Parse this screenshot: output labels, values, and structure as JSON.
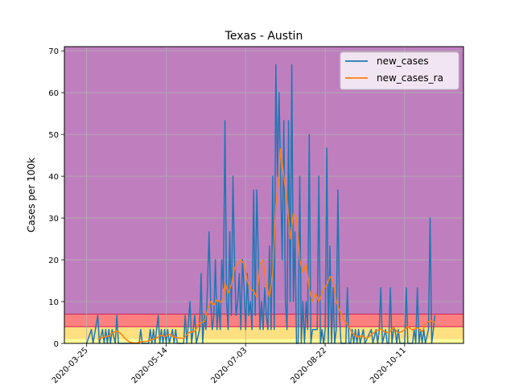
{
  "chart_data": {
    "type": "line",
    "title": "Texas - Austin",
    "ylabel": "Cases per 100k",
    "xlabel": "",
    "x_range": [
      "2020-03-11",
      "2020-11-17"
    ],
    "ylim": [
      0,
      71
    ],
    "y_ticks": [
      0,
      10,
      20,
      30,
      40,
      50,
      60,
      70
    ],
    "x_ticks": [
      "2020-03-25",
      "2020-05-14",
      "2020-07-03",
      "2020-08-22",
      "2020-10-11"
    ],
    "grid": true,
    "legend_position": "top-right",
    "background_bands": [
      {
        "from": 7,
        "to": 71,
        "color": "#bf7fbf"
      },
      {
        "from": 4,
        "to": 7,
        "color": "#ff8080"
      },
      {
        "from": 1,
        "to": 4,
        "color": "#ffe080"
      },
      {
        "from": 0,
        "to": 1,
        "color": "#ffff99"
      }
    ],
    "band_edge_color": "#cc2255",
    "series": [
      {
        "name": "new_cases",
        "color": "#1f77b4",
        "points": [
          [
            "2020-03-25",
            0
          ],
          [
            "2020-03-28",
            3.3
          ],
          [
            "2020-03-29",
            0
          ],
          [
            "2020-04-01",
            6.7
          ],
          [
            "2020-04-02",
            0
          ],
          [
            "2020-04-04",
            3.3
          ],
          [
            "2020-04-05",
            0
          ],
          [
            "2020-04-06",
            3.3
          ],
          [
            "2020-04-07",
            0
          ],
          [
            "2020-04-08",
            3.3
          ],
          [
            "2020-04-09",
            0
          ],
          [
            "2020-04-10",
            3.3
          ],
          [
            "2020-04-12",
            0
          ],
          [
            "2020-04-13",
            6.7
          ],
          [
            "2020-04-14",
            0
          ],
          [
            "2020-04-27",
            0
          ],
          [
            "2020-04-28",
            3.3
          ],
          [
            "2020-04-29",
            0
          ],
          [
            "2020-05-03",
            0
          ],
          [
            "2020-05-04",
            3.3
          ],
          [
            "2020-05-05",
            0
          ],
          [
            "2020-05-06",
            3.3
          ],
          [
            "2020-05-07",
            0
          ],
          [
            "2020-05-08",
            3.3
          ],
          [
            "2020-05-09",
            6.7
          ],
          [
            "2020-05-10",
            0
          ],
          [
            "2020-05-11",
            3.3
          ],
          [
            "2020-05-12",
            0
          ],
          [
            "2020-05-13",
            3.3
          ],
          [
            "2020-05-14",
            0
          ],
          [
            "2020-05-15",
            3.3
          ],
          [
            "2020-05-16",
            0
          ],
          [
            "2020-05-18",
            3.3
          ],
          [
            "2020-05-19",
            0
          ],
          [
            "2020-05-20",
            3.3
          ],
          [
            "2020-05-21",
            0
          ],
          [
            "2020-05-25",
            0
          ],
          [
            "2020-05-26",
            6.7
          ],
          [
            "2020-05-27",
            0
          ],
          [
            "2020-05-29",
            10
          ],
          [
            "2020-05-30",
            0
          ],
          [
            "2020-06-01",
            6.7
          ],
          [
            "2020-06-02",
            0
          ],
          [
            "2020-06-04",
            3.3
          ],
          [
            "2020-06-05",
            16.7
          ],
          [
            "2020-06-06",
            0
          ],
          [
            "2020-06-07",
            6.7
          ],
          [
            "2020-06-08",
            3.3
          ],
          [
            "2020-06-09",
            13.3
          ],
          [
            "2020-06-10",
            26.7
          ],
          [
            "2020-06-11",
            10
          ],
          [
            "2020-06-12",
            3.3
          ],
          [
            "2020-06-13",
            6.7
          ],
          [
            "2020-06-14",
            20
          ],
          [
            "2020-06-15",
            3.3
          ],
          [
            "2020-06-16",
            10
          ],
          [
            "2020-06-17",
            3.3
          ],
          [
            "2020-06-18",
            20
          ],
          [
            "2020-06-19",
            13.3
          ],
          [
            "2020-06-20",
            53.3
          ],
          [
            "2020-06-21",
            10
          ],
          [
            "2020-06-22",
            3.3
          ],
          [
            "2020-06-23",
            26.7
          ],
          [
            "2020-06-24",
            6.7
          ],
          [
            "2020-06-25",
            40
          ],
          [
            "2020-06-26",
            20
          ],
          [
            "2020-06-27",
            6.7
          ],
          [
            "2020-06-28",
            10
          ],
          [
            "2020-06-29",
            16.7
          ],
          [
            "2020-06-30",
            3.3
          ],
          [
            "2020-07-01",
            20
          ],
          [
            "2020-07-02",
            13.3
          ],
          [
            "2020-07-03",
            3.3
          ],
          [
            "2020-07-04",
            16.7
          ],
          [
            "2020-07-05",
            6.7
          ],
          [
            "2020-07-06",
            10
          ],
          [
            "2020-07-07",
            3.3
          ],
          [
            "2020-07-08",
            36.7
          ],
          [
            "2020-07-09",
            6.7
          ],
          [
            "2020-07-10",
            36.7
          ],
          [
            "2020-07-11",
            20
          ],
          [
            "2020-07-12",
            3.3
          ],
          [
            "2020-07-13",
            10
          ],
          [
            "2020-07-14",
            3.3
          ],
          [
            "2020-07-15",
            13.3
          ],
          [
            "2020-07-16",
            6.7
          ],
          [
            "2020-07-17",
            3.3
          ],
          [
            "2020-07-18",
            23.3
          ],
          [
            "2020-07-19",
            3.3
          ],
          [
            "2020-07-20",
            40
          ],
          [
            "2020-07-21",
            3.3
          ],
          [
            "2020-07-22",
            66.7
          ],
          [
            "2020-07-23",
            40
          ],
          [
            "2020-07-24",
            60
          ],
          [
            "2020-07-25",
            40
          ],
          [
            "2020-07-26",
            20
          ],
          [
            "2020-07-27",
            53.3
          ],
          [
            "2020-07-28",
            10
          ],
          [
            "2020-07-29",
            3.3
          ],
          [
            "2020-07-30",
            53.3
          ],
          [
            "2020-07-31",
            10
          ],
          [
            "2020-08-01",
            66.7
          ],
          [
            "2020-08-02",
            10
          ],
          [
            "2020-08-03",
            26.7
          ],
          [
            "2020-08-04",
            0
          ],
          [
            "2020-08-05",
            0
          ],
          [
            "2020-08-06",
            40
          ],
          [
            "2020-08-07",
            0
          ],
          [
            "2020-08-08",
            10
          ],
          [
            "2020-08-09",
            0
          ],
          [
            "2020-08-10",
            10
          ],
          [
            "2020-08-11",
            3.3
          ],
          [
            "2020-08-12",
            50
          ],
          [
            "2020-08-13",
            0
          ],
          [
            "2020-08-14",
            3.3
          ],
          [
            "2020-08-15",
            3.3
          ],
          [
            "2020-08-16",
            3.3
          ],
          [
            "2020-08-17",
            3.3
          ],
          [
            "2020-08-18",
            40
          ],
          [
            "2020-08-19",
            0
          ],
          [
            "2020-08-20",
            3.3
          ],
          [
            "2020-08-21",
            0
          ],
          [
            "2020-08-22",
            3.3
          ],
          [
            "2020-08-23",
            46.7
          ],
          [
            "2020-08-24",
            0
          ],
          [
            "2020-08-25",
            23.3
          ],
          [
            "2020-08-26",
            0
          ],
          [
            "2020-08-27",
            13.3
          ],
          [
            "2020-08-28",
            0
          ],
          [
            "2020-08-29",
            3.3
          ],
          [
            "2020-08-30",
            36.7
          ],
          [
            "2020-08-31",
            6.7
          ],
          [
            "2020-09-01",
            0
          ],
          [
            "2020-09-04",
            0
          ],
          [
            "2020-09-05",
            13.3
          ],
          [
            "2020-09-06",
            0
          ],
          [
            "2020-09-07",
            0
          ],
          [
            "2020-09-08",
            3.3
          ],
          [
            "2020-09-09",
            0
          ],
          [
            "2020-09-10",
            3.3
          ],
          [
            "2020-09-11",
            0
          ],
          [
            "2020-09-12",
            3.3
          ],
          [
            "2020-09-13",
            0
          ],
          [
            "2020-09-15",
            3.3
          ],
          [
            "2020-09-16",
            0
          ],
          [
            "2020-09-20",
            3.3
          ],
          [
            "2020-09-21",
            0
          ],
          [
            "2020-09-23",
            3.3
          ],
          [
            "2020-09-24",
            0
          ],
          [
            "2020-09-25",
            3.3
          ],
          [
            "2020-09-26",
            13.3
          ],
          [
            "2020-09-27",
            0
          ],
          [
            "2020-09-29",
            3.3
          ],
          [
            "2020-09-30",
            0
          ],
          [
            "2020-10-01",
            0
          ],
          [
            "2020-10-02",
            13.3
          ],
          [
            "2020-10-03",
            0
          ],
          [
            "2020-10-04",
            3.3
          ],
          [
            "2020-10-05",
            3.3
          ],
          [
            "2020-10-06",
            0
          ],
          [
            "2020-10-07",
            3.3
          ],
          [
            "2020-10-08",
            0
          ],
          [
            "2020-10-11",
            0
          ],
          [
            "2020-10-12",
            13.3
          ],
          [
            "2020-10-13",
            0
          ],
          [
            "2020-10-16",
            0
          ],
          [
            "2020-10-17",
            3.3
          ],
          [
            "2020-10-18",
            0
          ],
          [
            "2020-10-19",
            13.3
          ],
          [
            "2020-10-20",
            0
          ],
          [
            "2020-10-21",
            3.3
          ],
          [
            "2020-10-22",
            0
          ],
          [
            "2020-10-23",
            3.3
          ],
          [
            "2020-10-24",
            0
          ],
          [
            "2020-10-26",
            3.3
          ],
          [
            "2020-10-27",
            30
          ],
          [
            "2020-10-28",
            0
          ],
          [
            "2020-10-29",
            3.3
          ],
          [
            "2020-10-30",
            6.7
          ]
        ]
      },
      {
        "name": "new_cases_ra",
        "color": "#ff7f0e",
        "points": [
          [
            "2020-04-01",
            1
          ],
          [
            "2020-04-05",
            1.5
          ],
          [
            "2020-04-08",
            1.8
          ],
          [
            "2020-04-10",
            2.5
          ],
          [
            "2020-04-13",
            3
          ],
          [
            "2020-04-16",
            2.2
          ],
          [
            "2020-04-18",
            1.2
          ],
          [
            "2020-04-21",
            0.3
          ],
          [
            "2020-04-25",
            0
          ],
          [
            "2020-04-28",
            0.4
          ],
          [
            "2020-05-02",
            0.5
          ],
          [
            "2020-05-05",
            0.9
          ],
          [
            "2020-05-08",
            1.3
          ],
          [
            "2020-05-11",
            2
          ],
          [
            "2020-05-13",
            1.6
          ],
          [
            "2020-05-16",
            2.2
          ],
          [
            "2020-05-19",
            1.5
          ],
          [
            "2020-05-22",
            1.3
          ],
          [
            "2020-05-25",
            1.2
          ],
          [
            "2020-05-28",
            2.5
          ],
          [
            "2020-06-01",
            2.9
          ],
          [
            "2020-06-04",
            4.8
          ],
          [
            "2020-06-07",
            5.2
          ],
          [
            "2020-06-09",
            8
          ],
          [
            "2020-06-11",
            10
          ],
          [
            "2020-06-13",
            9.2
          ],
          [
            "2020-06-15",
            10.5
          ],
          [
            "2020-06-17",
            9.8
          ],
          [
            "2020-06-19",
            10.5
          ],
          [
            "2020-06-20",
            14.5
          ],
          [
            "2020-06-22",
            12
          ],
          [
            "2020-06-24",
            14
          ],
          [
            "2020-06-26",
            18
          ],
          [
            "2020-06-28",
            19
          ],
          [
            "2020-06-30",
            20
          ],
          [
            "2020-07-02",
            19
          ],
          [
            "2020-07-04",
            15
          ],
          [
            "2020-07-06",
            13
          ],
          [
            "2020-07-08",
            12.5
          ],
          [
            "2020-07-10",
            11
          ],
          [
            "2020-07-12",
            19
          ],
          [
            "2020-07-14",
            20
          ],
          [
            "2020-07-16",
            14
          ],
          [
            "2020-07-18",
            11
          ],
          [
            "2020-07-20",
            17
          ],
          [
            "2020-07-22",
            33
          ],
          [
            "2020-07-24",
            40
          ],
          [
            "2020-07-25",
            46.5
          ],
          [
            "2020-07-27",
            40
          ],
          [
            "2020-07-29",
            34
          ],
          [
            "2020-07-31",
            25
          ],
          [
            "2020-08-02",
            31
          ],
          [
            "2020-08-04",
            30
          ],
          [
            "2020-08-06",
            20
          ],
          [
            "2020-08-08",
            17
          ],
          [
            "2020-08-10",
            19
          ],
          [
            "2020-08-12",
            13
          ],
          [
            "2020-08-14",
            10
          ],
          [
            "2020-08-16",
            12
          ],
          [
            "2020-08-18",
            10
          ],
          [
            "2020-08-21",
            13
          ],
          [
            "2020-08-23",
            14
          ],
          [
            "2020-08-25",
            16
          ],
          [
            "2020-08-27",
            15
          ],
          [
            "2020-08-29",
            10
          ],
          [
            "2020-09-01",
            7
          ],
          [
            "2020-09-03",
            5.5
          ],
          [
            "2020-09-05",
            4.5
          ],
          [
            "2020-09-08",
            2.5
          ],
          [
            "2020-09-11",
            1.5
          ],
          [
            "2020-09-14",
            1.8
          ],
          [
            "2020-09-17",
            1.2
          ],
          [
            "2020-09-20",
            2
          ],
          [
            "2020-09-23",
            3
          ],
          [
            "2020-09-26",
            3.5
          ],
          [
            "2020-09-28",
            2.8
          ],
          [
            "2020-10-01",
            2.5
          ],
          [
            "2020-10-04",
            3.8
          ],
          [
            "2020-10-07",
            2.5
          ],
          [
            "2020-10-10",
            3
          ],
          [
            "2020-10-13",
            4
          ],
          [
            "2020-10-16",
            3.2
          ],
          [
            "2020-10-19",
            3.8
          ],
          [
            "2020-10-22",
            2.8
          ],
          [
            "2020-10-24",
            4.5
          ],
          [
            "2020-10-27",
            5.5
          ],
          [
            "2020-10-30",
            5
          ]
        ]
      }
    ]
  }
}
